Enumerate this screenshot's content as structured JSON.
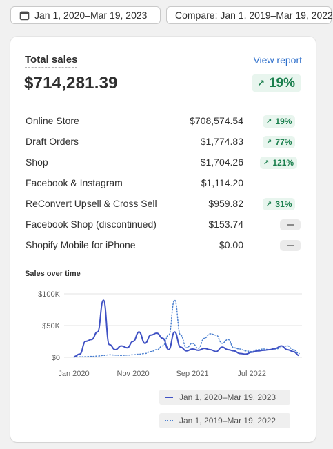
{
  "date_range": {
    "label": "Jan 1, 2020–Mar 19, 2023",
    "icon": "calendar-icon"
  },
  "compare": {
    "label": "Compare: Jan 1, 2019–Mar 19, 2022"
  },
  "card": {
    "title": "Total sales",
    "view_report": "View report",
    "total": "$714,281.39",
    "change": "19%",
    "change_direction": "up",
    "positive_color": "#1a7f4d"
  },
  "channels": [
    {
      "name": "Online Store",
      "value": "$708,574.54",
      "change": "19%"
    },
    {
      "name": "Draft Orders",
      "value": "$1,774.83",
      "change": "77%"
    },
    {
      "name": "Shop",
      "value": "$1,704.26",
      "change": "121%"
    },
    {
      "name": "Facebook & Instagram",
      "value": "$1,114.20",
      "change": null
    },
    {
      "name": "ReConvert Upsell & Cross Sell",
      "value": "$959.82",
      "change": "31%"
    },
    {
      "name": "Facebook Shop (discontinued)",
      "value": "$153.74",
      "change": "—"
    },
    {
      "name": "Shopify Mobile for iPhone",
      "value": "$0.00",
      "change": "—"
    }
  ],
  "chart": {
    "title": "Sales over time",
    "y_ticks": [
      "$100K",
      "$50K",
      "$0"
    ],
    "x_ticks": [
      "Jan 2020",
      "Nov 2020",
      "Sep 2021",
      "Jul 2022"
    ],
    "legend": [
      "Jan 1, 2020–Mar 19, 2023",
      "Jan 1, 2019–Mar 19, 2022"
    ],
    "colors": {
      "current": "#3f51c4",
      "previous": "#4a7fd0"
    }
  },
  "chart_data": {
    "type": "line",
    "title": "Sales over time",
    "xlabel": "",
    "ylabel": "",
    "ylim": [
      0,
      100000
    ],
    "x": [
      "Jan 2020",
      "Feb 2020",
      "Mar 2020",
      "Apr 2020",
      "May 2020",
      "Jun 2020",
      "Jul 2020",
      "Aug 2020",
      "Sep 2020",
      "Oct 2020",
      "Nov 2020",
      "Dec 2020",
      "Jan 2021",
      "Feb 2021",
      "Mar 2021",
      "Apr 2021",
      "May 2021",
      "Jun 2021",
      "Jul 2021",
      "Aug 2021",
      "Sep 2021",
      "Oct 2021",
      "Nov 2021",
      "Dec 2021",
      "Jan 2022",
      "Feb 2022",
      "Mar 2022",
      "Apr 2022",
      "May 2022",
      "Jun 2022",
      "Jul 2022",
      "Aug 2022",
      "Sep 2022",
      "Oct 2022",
      "Nov 2022",
      "Dec 2022",
      "Jan 2023",
      "Feb 2023",
      "Mar 2023"
    ],
    "series": [
      {
        "name": "Jan 1, 2020–Mar 19, 2023",
        "values": [
          1000,
          5000,
          25000,
          28000,
          40000,
          90000,
          20000,
          12000,
          18000,
          15000,
          25000,
          40000,
          22000,
          35000,
          38000,
          30000,
          12000,
          40000,
          16000,
          10000,
          13000,
          11000,
          14000,
          12000,
          9000,
          16000,
          12000,
          10000,
          6000,
          5000,
          8000,
          10000,
          11000,
          12000,
          14000,
          18000,
          12000,
          9000,
          3000
        ]
      },
      {
        "name": "Jan 1, 2019–Mar 19, 2022",
        "values": [
          500,
          800,
          1000,
          1500,
          2000,
          3000,
          4000,
          3500,
          3000,
          3500,
          4000,
          5000,
          6000,
          9000,
          12000,
          18000,
          35000,
          90000,
          35000,
          15000,
          22000,
          14000,
          30000,
          37000,
          35000,
          22000,
          28000,
          15000,
          13000,
          10000,
          9000,
          12000,
          13000,
          12000,
          13000,
          15000,
          18000,
          12000,
          6000
        ]
      }
    ]
  }
}
